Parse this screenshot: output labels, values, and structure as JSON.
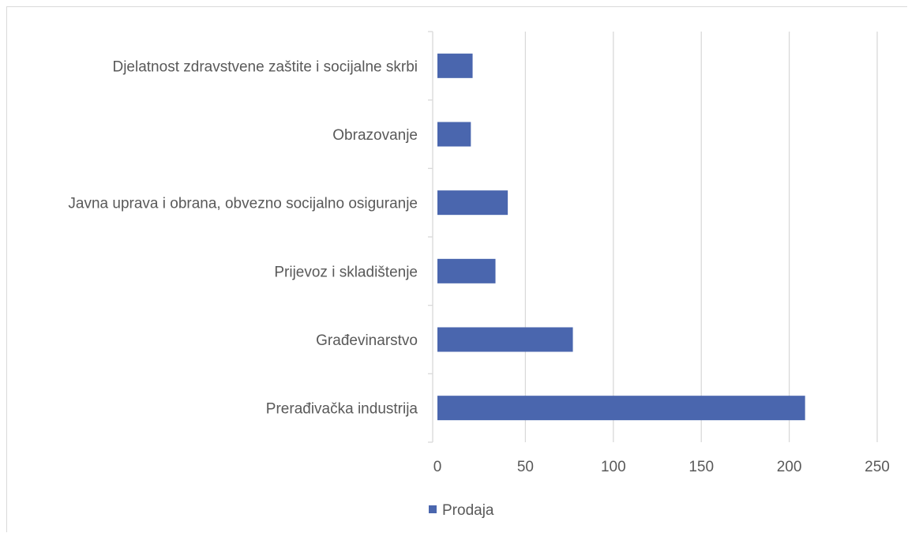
{
  "chart_data": {
    "type": "bar",
    "orientation": "horizontal",
    "categories": [
      "Djelatnost zdravstvene zaštite i socijalne skrbi",
      "Obrazovanje",
      "Javna uprava i obrana, obvezno socijalno osiguranje",
      "Prijevoz i skladištenje",
      "Građevinarstvo",
      "Prerađivačka industrija"
    ],
    "series": [
      {
        "name": "Prodaja",
        "color": "#4a66ae",
        "values": [
          20,
          19,
          40,
          33,
          77,
          209
        ]
      }
    ],
    "xlim": [
      0,
      250
    ],
    "xticks": [
      0,
      50,
      100,
      150,
      200,
      250
    ],
    "grid": true,
    "legend_position": "bottom-left"
  }
}
